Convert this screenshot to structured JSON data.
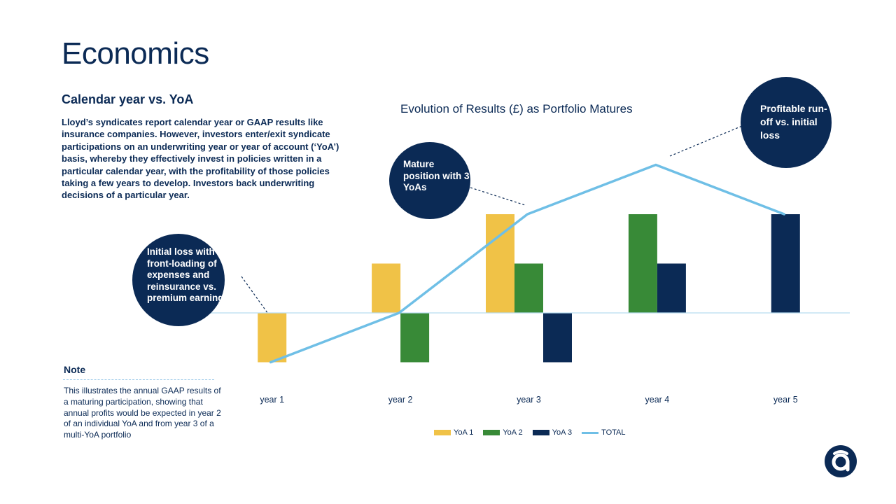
{
  "slide": {
    "title": "Economics",
    "subtitle": "Calendar year vs. YoA",
    "body": "Lloyd’s syndicates report calendar year or GAAP results like insurance companies. However, investors enter/exit syndicate participations on an underwriting year or year of account (‘YoA’) basis, whereby they effectively invest in policies written in a particular calendar year, with the profitability of those policies taking a few years to develop. Investors back underwriting decisions of a particular year.",
    "note_title": "Note",
    "note_text": "This illustrates the annual GAAP results of a maturing participation, showing that annual profits would be expected in year 2 of an individual YoA and from year 3 of a multi-YoA portfolio"
  },
  "callouts": {
    "initial_loss": "Initial loss with front-loading of expenses and reinsurance vs. premium earning",
    "mature": "Mature position with 3 YoAs",
    "profitable": "Profitable run-off vs. initial loss"
  },
  "logo": {
    "icon": "a-logo-icon"
  },
  "chart_data": {
    "type": "bar",
    "title": "Evolution of Results (£) as Portfolio Matures",
    "categories": [
      "year 1",
      "year 2",
      "year 3",
      "year 4",
      "year 5"
    ],
    "series": [
      {
        "name": "YoA 1",
        "kind": "bar",
        "color": "#f0c247",
        "values": [
          -1,
          1,
          2,
          null,
          null
        ]
      },
      {
        "name": "YoA 2",
        "kind": "bar",
        "color": "#388a37",
        "values": [
          null,
          -1,
          1,
          2,
          null
        ]
      },
      {
        "name": "YoA 3",
        "kind": "bar",
        "color": "#0b2a55",
        "values": [
          null,
          null,
          -1,
          1,
          2
        ]
      },
      {
        "name": "TOTAL",
        "kind": "line",
        "color": "#6fbfe6",
        "values": [
          -1,
          0,
          2,
          3,
          2
        ]
      }
    ],
    "ylim": [
      -1,
      3.2
    ],
    "xlabel": "",
    "ylabel": "",
    "grid": false,
    "legend": "bottom"
  }
}
